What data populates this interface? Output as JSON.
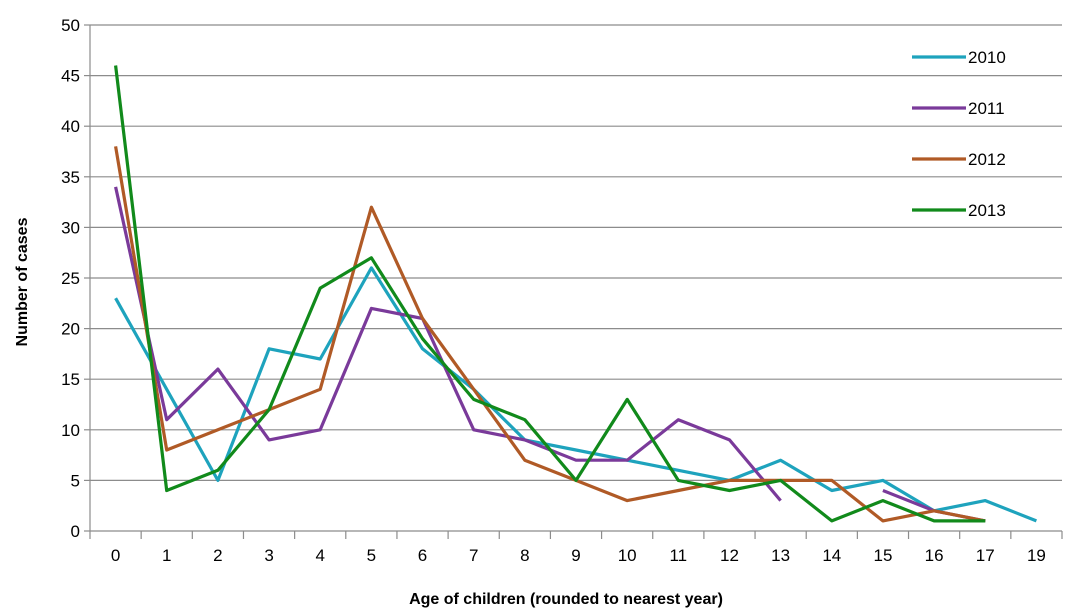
{
  "chart_data": {
    "type": "line",
    "title": "",
    "xlabel": "Age of children (rounded to nearest year)",
    "ylabel": "Number of cases",
    "ylim": [
      0,
      50
    ],
    "y_ticks": [
      0,
      5,
      10,
      15,
      20,
      25,
      30,
      35,
      40,
      45,
      50
    ],
    "x_ticks": [
      0,
      1,
      2,
      3,
      4,
      5,
      6,
      7,
      8,
      9,
      10,
      11,
      12,
      13,
      14,
      15,
      16,
      17,
      19
    ],
    "x": [
      0,
      1,
      2,
      3,
      4,
      5,
      6,
      7,
      8,
      9,
      10,
      11,
      12,
      13,
      14,
      15,
      16,
      17,
      19
    ],
    "grid": "horizontal",
    "legend": "top-right",
    "series": [
      {
        "name": "2010",
        "color": "#1ea3bd",
        "values": [
          23,
          14,
          5,
          18,
          17,
          26,
          18,
          14,
          9,
          8,
          7,
          6,
          5,
          7,
          4,
          5,
          2,
          3,
          1
        ]
      },
      {
        "name": "2011",
        "color": "#7a3a9a",
        "values": [
          34,
          11,
          16,
          9,
          10,
          22,
          21,
          10,
          9,
          7,
          7,
          11,
          9,
          3,
          null,
          4,
          2,
          1,
          null
        ]
      },
      {
        "name": "2012",
        "color": "#b05a26",
        "values": [
          38,
          8,
          10,
          12,
          14,
          32,
          21,
          14,
          7,
          5,
          3,
          4,
          5,
          5,
          5,
          1,
          2,
          1,
          null
        ]
      },
      {
        "name": "2013",
        "color": "#118a1b",
        "values": [
          46,
          4,
          6,
          12,
          24,
          27,
          19,
          13,
          11,
          5,
          13,
          5,
          4,
          5,
          1,
          3,
          1,
          1,
          null
        ]
      }
    ]
  }
}
